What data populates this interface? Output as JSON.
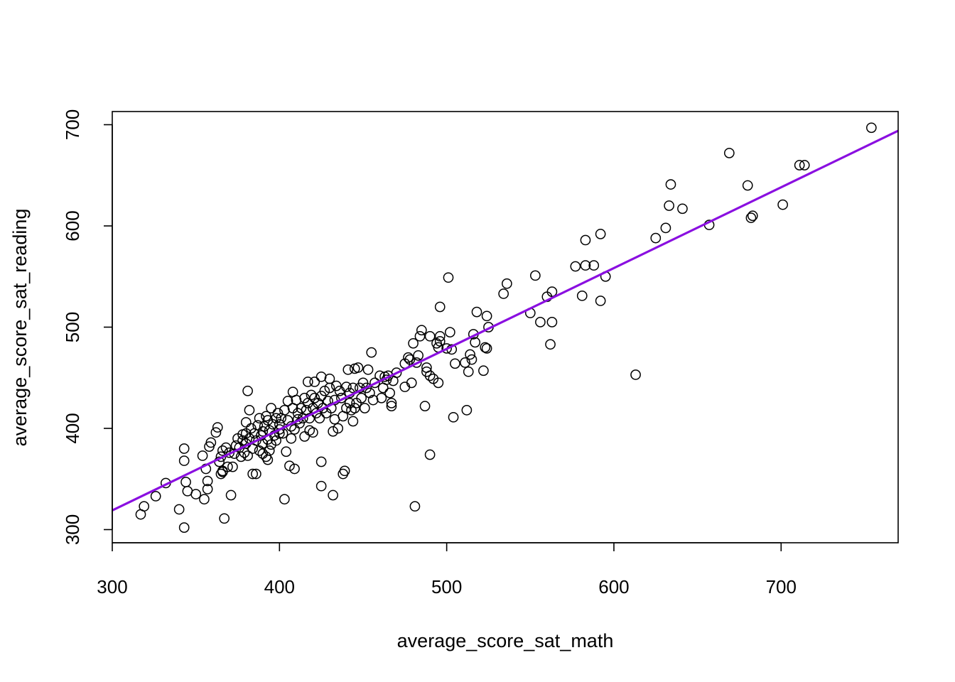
{
  "chart_data": {
    "type": "scatter",
    "title": "",
    "xlabel": "average_score_sat_math",
    "ylabel": "average_score_sat_reading",
    "xlim": [
      300,
      770
    ],
    "ylim": [
      287,
      713
    ],
    "x_ticks": [
      "300",
      "400",
      "500",
      "600",
      "700"
    ],
    "y_ticks": [
      "300",
      "400",
      "500",
      "600",
      "700"
    ],
    "grid": false,
    "point_color": "#000000",
    "fit_line": {
      "color": "#8A0FE0",
      "x": [
        300,
        770
      ],
      "y": [
        319,
        694
      ]
    },
    "points": [
      [
        317,
        315
      ],
      [
        319,
        323
      ],
      [
        326,
        333
      ],
      [
        332,
        346
      ],
      [
        340,
        320
      ],
      [
        343,
        302
      ],
      [
        343,
        380
      ],
      [
        343,
        368
      ],
      [
        344,
        347
      ],
      [
        345,
        338
      ],
      [
        350,
        335
      ],
      [
        354,
        373
      ],
      [
        355,
        330
      ],
      [
        356,
        360
      ],
      [
        357,
        340
      ],
      [
        357,
        348
      ],
      [
        358,
        382
      ],
      [
        359,
        386
      ],
      [
        362,
        396
      ],
      [
        363,
        401
      ],
      [
        364,
        367
      ],
      [
        365,
        372
      ],
      [
        365,
        355
      ],
      [
        366,
        357
      ],
      [
        366,
        358
      ],
      [
        366,
        378
      ],
      [
        367,
        311
      ],
      [
        368,
        381
      ],
      [
        369,
        362
      ],
      [
        370,
        376
      ],
      [
        371,
        334
      ],
      [
        372,
        362
      ],
      [
        373,
        375
      ],
      [
        374,
        383
      ],
      [
        375,
        390
      ],
      [
        376,
        381
      ],
      [
        377,
        372
      ],
      [
        378,
        388
      ],
      [
        378,
        394
      ],
      [
        379,
        376
      ],
      [
        380,
        385
      ],
      [
        380,
        395
      ],
      [
        380,
        406
      ],
      [
        381,
        373
      ],
      [
        381,
        437
      ],
      [
        382,
        418
      ],
      [
        382,
        390
      ],
      [
        383,
        400
      ],
      [
        384,
        380
      ],
      [
        384,
        355
      ],
      [
        385,
        395
      ],
      [
        386,
        355
      ],
      [
        386,
        388
      ],
      [
        387,
        403
      ],
      [
        388,
        378
      ],
      [
        388,
        410
      ],
      [
        389,
        393
      ],
      [
        390,
        385
      ],
      [
        390,
        397
      ],
      [
        390,
        375
      ],
      [
        391,
        402
      ],
      [
        392,
        372
      ],
      [
        392,
        412
      ],
      [
        393,
        389
      ],
      [
        393,
        369
      ],
      [
        393,
        408
      ],
      [
        394,
        378
      ],
      [
        394,
        398
      ],
      [
        395,
        384
      ],
      [
        395,
        420
      ],
      [
        396,
        404
      ],
      [
        397,
        393
      ],
      [
        398,
        410
      ],
      [
        398,
        388
      ],
      [
        399,
        415
      ],
      [
        400,
        399
      ],
      [
        400,
        404
      ],
      [
        400,
        395
      ],
      [
        401,
        410
      ],
      [
        402,
        395
      ],
      [
        403,
        330
      ],
      [
        403,
        418
      ],
      [
        404,
        377
      ],
      [
        405,
        408
      ],
      [
        405,
        427
      ],
      [
        406,
        363
      ],
      [
        407,
        402
      ],
      [
        407,
        390
      ],
      [
        408,
        420
      ],
      [
        408,
        436
      ],
      [
        409,
        360
      ],
      [
        409,
        399
      ],
      [
        410,
        428
      ],
      [
        411,
        409
      ],
      [
        411,
        415
      ],
      [
        412,
        405
      ],
      [
        413,
        420
      ],
      [
        414,
        410
      ],
      [
        415,
        392
      ],
      [
        415,
        430
      ],
      [
        416,
        418
      ],
      [
        417,
        425
      ],
      [
        417,
        446
      ],
      [
        418,
        398
      ],
      [
        418,
        410
      ],
      [
        419,
        433
      ],
      [
        420,
        396
      ],
      [
        420,
        420
      ],
      [
        421,
        430
      ],
      [
        421,
        446
      ],
      [
        422,
        415
      ],
      [
        423,
        425
      ],
      [
        424,
        410
      ],
      [
        425,
        343
      ],
      [
        425,
        367
      ],
      [
        425,
        432
      ],
      [
        425,
        451
      ],
      [
        426,
        420
      ],
      [
        427,
        437
      ],
      [
        428,
        415
      ],
      [
        429,
        427
      ],
      [
        430,
        440
      ],
      [
        430,
        449
      ],
      [
        431,
        420
      ],
      [
        432,
        334
      ],
      [
        432,
        397
      ],
      [
        433,
        409
      ],
      [
        433,
        428
      ],
      [
        434,
        442
      ],
      [
        435,
        400
      ],
      [
        436,
        437
      ],
      [
        437,
        430
      ],
      [
        438,
        355
      ],
      [
        438,
        412
      ],
      [
        439,
        358
      ],
      [
        440,
        420
      ],
      [
        440,
        441
      ],
      [
        441,
        458
      ],
      [
        442,
        435
      ],
      [
        442,
        425
      ],
      [
        443,
        418
      ],
      [
        444,
        407
      ],
      [
        444,
        440
      ],
      [
        445,
        420
      ],
      [
        445,
        459
      ],
      [
        446,
        425
      ],
      [
        447,
        460
      ],
      [
        448,
        440
      ],
      [
        449,
        430
      ],
      [
        450,
        445
      ],
      [
        451,
        420
      ],
      [
        452,
        440
      ],
      [
        453,
        458
      ],
      [
        454,
        435
      ],
      [
        455,
        475
      ],
      [
        456,
        428
      ],
      [
        457,
        445
      ],
      [
        460,
        452
      ],
      [
        461,
        430
      ],
      [
        462,
        440
      ],
      [
        463,
        451
      ],
      [
        464,
        448
      ],
      [
        465,
        452
      ],
      [
        466,
        435
      ],
      [
        467,
        422
      ],
      [
        467,
        425
      ],
      [
        468,
        447
      ],
      [
        470,
        455
      ],
      [
        475,
        441
      ],
      [
        475,
        464
      ],
      [
        477,
        470
      ],
      [
        478,
        468
      ],
      [
        479,
        445
      ],
      [
        480,
        484
      ],
      [
        481,
        323
      ],
      [
        482,
        465
      ],
      [
        483,
        472
      ],
      [
        484,
        491
      ],
      [
        485,
        497
      ],
      [
        487,
        422
      ],
      [
        488,
        460
      ],
      [
        488,
        456
      ],
      [
        490,
        374
      ],
      [
        490,
        452
      ],
      [
        490,
        491
      ],
      [
        492,
        449
      ],
      [
        494,
        484
      ],
      [
        495,
        445
      ],
      [
        495,
        480
      ],
      [
        496,
        486
      ],
      [
        496,
        491
      ],
      [
        496,
        520
      ],
      [
        500,
        479
      ],
      [
        501,
        549
      ],
      [
        502,
        495
      ],
      [
        503,
        478
      ],
      [
        504,
        411
      ],
      [
        505,
        464
      ],
      [
        511,
        465
      ],
      [
        512,
        418
      ],
      [
        513,
        456
      ],
      [
        514,
        473
      ],
      [
        515,
        468
      ],
      [
        516,
        493
      ],
      [
        517,
        485
      ],
      [
        518,
        515
      ],
      [
        522,
        457
      ],
      [
        523,
        480
      ],
      [
        524,
        479
      ],
      [
        524,
        511
      ],
      [
        525,
        500
      ],
      [
        534,
        533
      ],
      [
        536,
        543
      ],
      [
        550,
        514
      ],
      [
        553,
        551
      ],
      [
        556,
        505
      ],
      [
        560,
        530
      ],
      [
        562,
        483
      ],
      [
        563,
        505
      ],
      [
        563,
        535
      ],
      [
        577,
        560
      ],
      [
        581,
        531
      ],
      [
        583,
        561
      ],
      [
        583,
        586
      ],
      [
        588,
        561
      ],
      [
        592,
        592
      ],
      [
        592,
        526
      ],
      [
        595,
        550
      ],
      [
        613,
        453
      ],
      [
        625,
        588
      ],
      [
        631,
        598
      ],
      [
        633,
        620
      ],
      [
        634,
        641
      ],
      [
        641,
        617
      ],
      [
        657,
        601
      ],
      [
        669,
        672
      ],
      [
        680,
        640
      ],
      [
        682,
        608
      ],
      [
        683,
        610
      ],
      [
        701,
        621
      ],
      [
        711,
        660
      ],
      [
        714,
        660
      ],
      [
        754,
        697
      ]
    ]
  }
}
